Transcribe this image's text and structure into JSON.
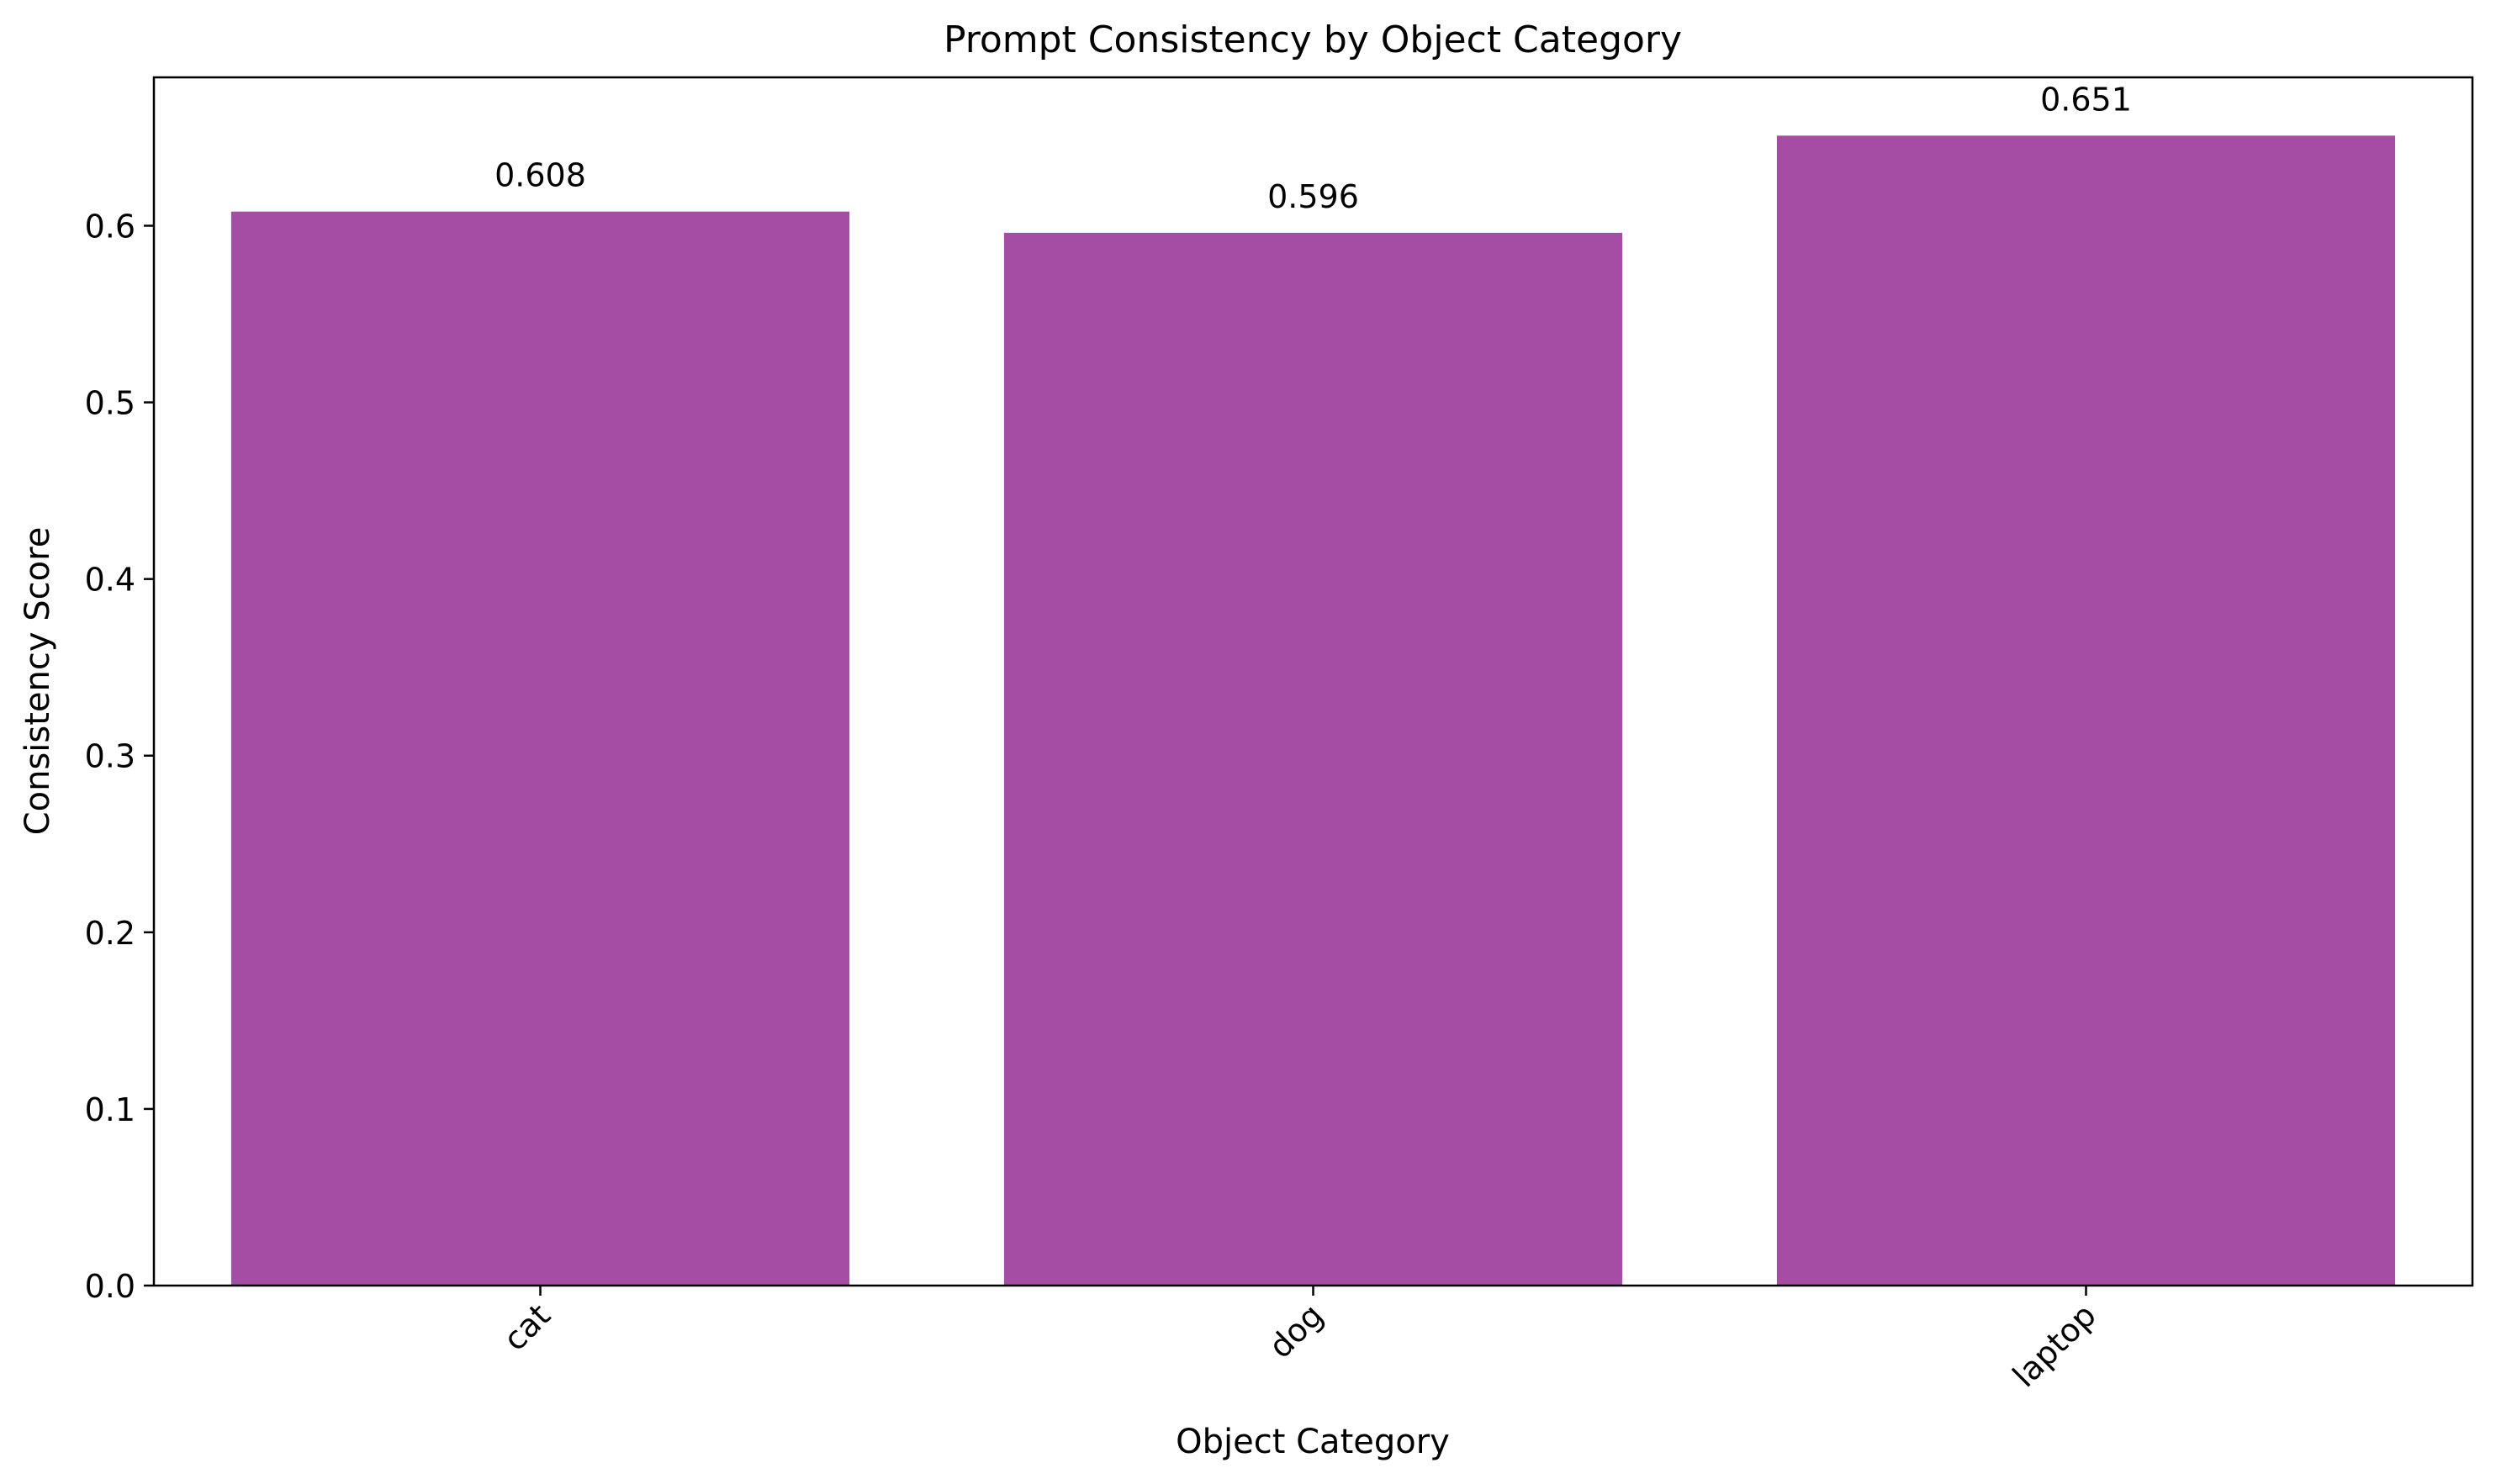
{
  "chart_data": {
    "type": "bar",
    "title": "Prompt Consistency by Object Category",
    "xlabel": "Object Category",
    "ylabel": "Consistency Score",
    "categories": [
      "cat",
      "dog",
      "laptop"
    ],
    "values": [
      0.608,
      0.596,
      0.651
    ],
    "value_labels": [
      "0.608",
      "0.596",
      "0.651"
    ],
    "yticks": [
      0.0,
      0.1,
      0.2,
      0.3,
      0.4,
      0.5,
      0.6
    ],
    "ytick_labels": [
      "0.0",
      "0.1",
      "0.2",
      "0.3",
      "0.4",
      "0.5",
      "0.6"
    ],
    "ylim": [
      0,
      0.684
    ],
    "xtick_rotation_deg": 45,
    "grid": false,
    "legend": "none",
    "colors": {
      "bar": "#a54ca5",
      "axes": "#000000",
      "text": "#000000",
      "background": "#ffffff"
    }
  }
}
